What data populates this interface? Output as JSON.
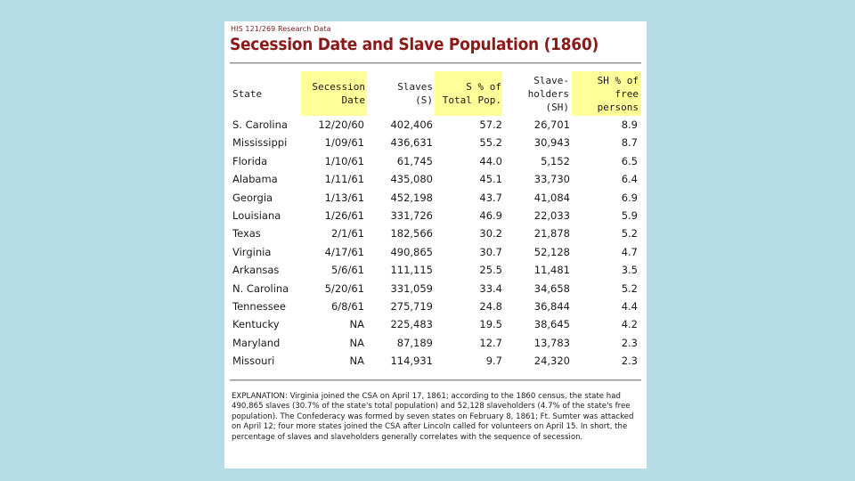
{
  "header": {
    "course": "HIS 121/269 Research Data",
    "title": "Secession Date and Slave Population (1860)"
  },
  "columns": {
    "state": [
      "State"
    ],
    "secession": [
      "Secession",
      "Date"
    ],
    "slaves": [
      "Slaves",
      "(S)"
    ],
    "pct": [
      "S % of",
      "Total Pop."
    ],
    "slaveholders": [
      "Slave-",
      "holders",
      "(SH)"
    ],
    "sh_pct": [
      "SH % of",
      "free",
      "persons"
    ]
  },
  "rows": [
    {
      "state": "S. Carolina",
      "date": "12/20/60",
      "slaves": "402,406",
      "pct": "57.2",
      "sh": "26,701",
      "sh_pct": "8.9"
    },
    {
      "state": "Mississippi",
      "date": "1/09/61",
      "slaves": "436,631",
      "pct": "55.2",
      "sh": "30,943",
      "sh_pct": "8.7"
    },
    {
      "state": "Florida",
      "date": "1/10/61",
      "slaves": "61,745",
      "pct": "44.0",
      "sh": "5,152",
      "sh_pct": "6.5"
    },
    {
      "state": "Alabama",
      "date": "1/11/61",
      "slaves": "435,080",
      "pct": "45.1",
      "sh": "33,730",
      "sh_pct": "6.4"
    },
    {
      "state": "Georgia",
      "date": "1/13/61",
      "slaves": "452,198",
      "pct": "43.7",
      "sh": "41,084",
      "sh_pct": "6.9"
    },
    {
      "state": "Louisiana",
      "date": "1/26/61",
      "slaves": "331,726",
      "pct": "46.9",
      "sh": "22,033",
      "sh_pct": "5.9"
    },
    {
      "state": "Texas",
      "date": "2/1/61",
      "slaves": "182,566",
      "pct": "30.2",
      "sh": "21,878",
      "sh_pct": "5.2"
    },
    {
      "state": "Virginia",
      "date": "4/17/61",
      "slaves": "490,865",
      "pct": "30.7",
      "sh": "52,128",
      "sh_pct": "4.7"
    },
    {
      "state": "Arkansas",
      "date": "5/6/61",
      "slaves": "111,115",
      "pct": "25.5",
      "sh": "11,481",
      "sh_pct": "3.5"
    },
    {
      "state": "N. Carolina",
      "date": "5/20/61",
      "slaves": "331,059",
      "pct": "33.4",
      "sh": "34,658",
      "sh_pct": "5.2"
    },
    {
      "state": "Tennessee",
      "date": "6/8/61",
      "slaves": "275,719",
      "pct": "24.8",
      "sh": "36,844",
      "sh_pct": "4.4"
    },
    {
      "state": "Kentucky",
      "date": "NA",
      "slaves": "225,483",
      "pct": "19.5",
      "sh": "38,645",
      "sh_pct": "4.2"
    },
    {
      "state": "Maryland",
      "date": "NA",
      "slaves": "87,189",
      "pct": "12.7",
      "sh": "13,783",
      "sh_pct": "2.3"
    },
    {
      "state": "Missouri",
      "date": "NA",
      "slaves": "114,931",
      "pct": "9.7",
      "sh": "24,320",
      "sh_pct": "2.3"
    }
  ],
  "explanation": "EXPLANATION: Virginia joined the CSA on April 17, 1861; according to the 1860 census, the state had 490,865 slaves (30.7% of the state's total population) and 52,128 slaveholders (4.7% of the state's free population). The Confederacy was formed by seven states on February 8, 1861; Ft. Sumter was attacked on April 12; four more states joined the CSA after Lincoln called for volunteers on April 15. In short, the percentage of slaves and slaveholders generally correlates with the sequence of secession.",
  "colors": {
    "background": "#b6dde5",
    "title": "#8b1a1a",
    "highlight": "#ffff99"
  }
}
